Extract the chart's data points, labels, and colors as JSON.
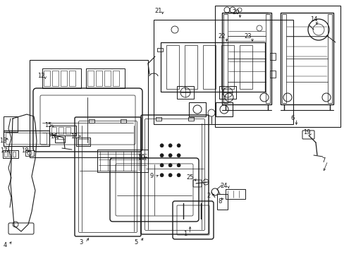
{
  "bg_color": "#ffffff",
  "line_color": "#1a1a1a",
  "figsize": [
    4.89,
    3.6
  ],
  "dpi": 100,
  "labels": {
    "1": [
      265,
      335,
      278,
      328,
      "right"
    ],
    "2": [
      298,
      282,
      308,
      275,
      "right"
    ],
    "3": [
      118,
      348,
      130,
      342,
      "right"
    ],
    "4": [
      8,
      350,
      20,
      347,
      "right"
    ],
    "5": [
      195,
      348,
      207,
      342,
      "right"
    ],
    "6": [
      418,
      172,
      425,
      178,
      "right"
    ],
    "7": [
      462,
      235,
      460,
      245,
      "left"
    ],
    "8": [
      315,
      290,
      308,
      285,
      "left"
    ],
    "9": [
      218,
      255,
      228,
      250,
      "right"
    ],
    "10": [
      202,
      228,
      212,
      222,
      "right"
    ],
    "11": [
      108,
      198,
      120,
      194,
      "right"
    ],
    "12": [
      62,
      105,
      72,
      110,
      "right"
    ],
    "13": [
      5,
      205,
      12,
      200,
      "right"
    ],
    "14": [
      448,
      30,
      450,
      40,
      "right"
    ],
    "15": [
      72,
      182,
      83,
      180,
      "right"
    ],
    "16": [
      78,
      198,
      88,
      196,
      "right"
    ],
    "17": [
      8,
      218,
      18,
      215,
      "right"
    ],
    "18": [
      38,
      218,
      45,
      222,
      "right"
    ],
    "19": [
      438,
      195,
      442,
      205,
      "right"
    ],
    "20": [
      338,
      22,
      345,
      28,
      "right"
    ],
    "21": [
      228,
      18,
      235,
      24,
      "right"
    ],
    "22": [
      318,
      55,
      323,
      62,
      "right"
    ],
    "23": [
      355,
      55,
      360,
      62,
      "right"
    ],
    "24": [
      322,
      272,
      330,
      268,
      "right"
    ],
    "25": [
      272,
      255,
      282,
      252,
      "right"
    ]
  }
}
